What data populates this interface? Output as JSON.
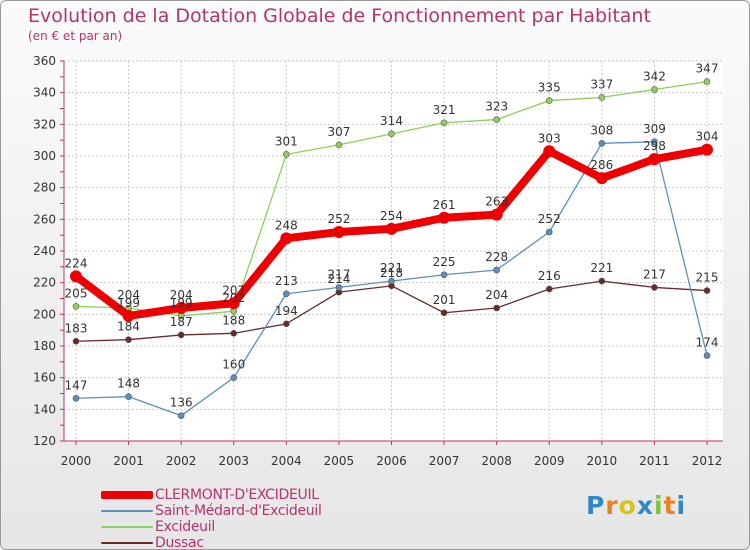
{
  "chart_data": {
    "type": "line",
    "title": "Evolution de la Dotation Globale de Fonctionnement par Habitant",
    "subtitle": "(en € et par an)",
    "x": [
      "2000",
      "2001",
      "2002",
      "2003",
      "2004",
      "2005",
      "2006",
      "2007",
      "2008",
      "2009",
      "2010",
      "2011",
      "2012"
    ],
    "ylim": [
      120,
      360
    ],
    "yticks": [
      120,
      140,
      160,
      180,
      200,
      220,
      240,
      260,
      280,
      300,
      320,
      340,
      360
    ],
    "grid": true,
    "legend_position": "bottom-left",
    "series": [
      {
        "name": "CLERMONT-D'EXCIDEUIL",
        "color": "#ee0000",
        "values": [
          224,
          199,
          204,
          207,
          248,
          252,
          254,
          261,
          263,
          303,
          286,
          298,
          304
        ]
      },
      {
        "name": "Saint-Médard-d'Excideuil",
        "color": "#5b8fc0",
        "values": [
          147,
          148,
          136,
          160,
          213,
          217,
          221,
          225,
          228,
          252,
          308,
          309,
          174
        ]
      },
      {
        "name": "Excideuil",
        "color": "#8ed05a",
        "values": [
          205,
          204,
          199,
          202,
          301,
          307,
          314,
          321,
          323,
          335,
          337,
          342,
          347
        ]
      },
      {
        "name": "Dussac",
        "color": "#6a2a2a",
        "values": [
          183,
          184,
          187,
          188,
          194,
          214,
          218,
          201,
          204,
          216,
          221,
          217,
          215
        ]
      }
    ]
  },
  "logo": {
    "letters": [
      "P",
      "r",
      "o",
      "x",
      "i",
      "t",
      "i"
    ],
    "colors": [
      "#2f86c9",
      "#e8821e",
      "#d9c21f",
      "#2f86c9",
      "#7cc242",
      "#e8821e",
      "#2f86c9"
    ]
  }
}
